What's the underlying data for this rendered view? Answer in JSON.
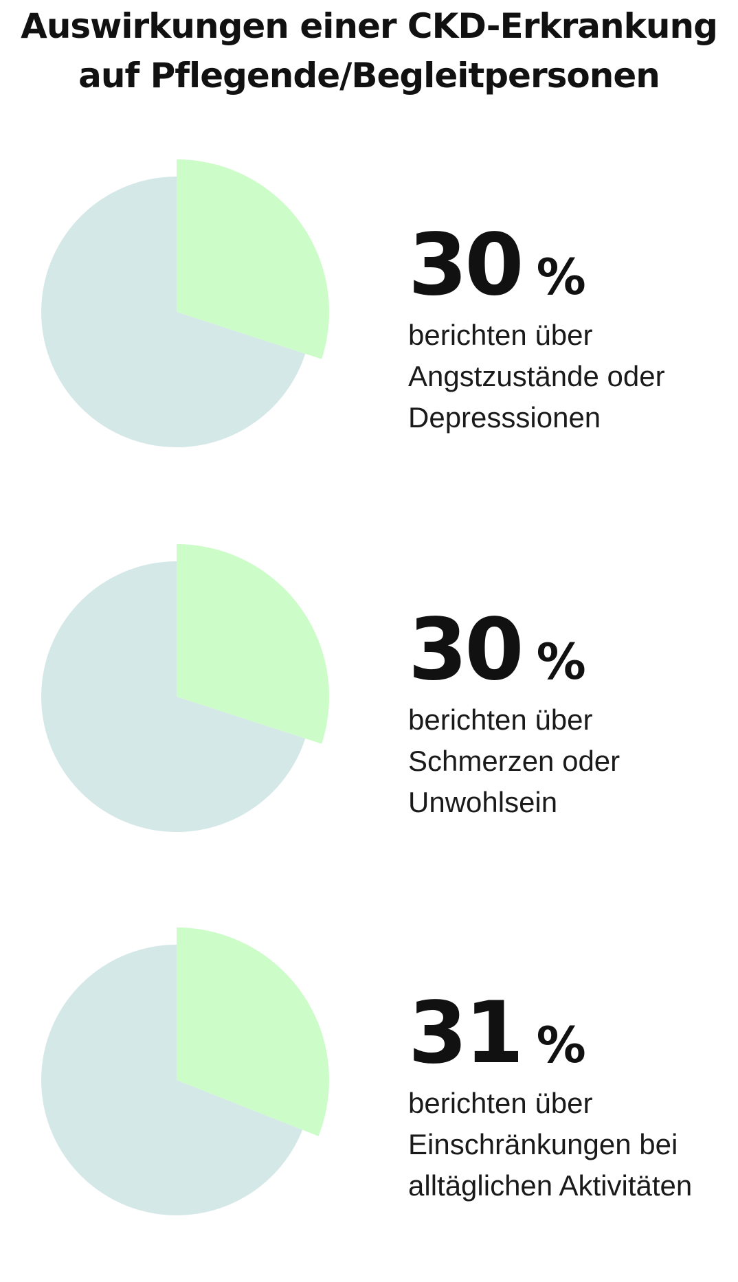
{
  "title": {
    "line1": "Auswirkungen einer CKD-Erkrankung",
    "line2": "auf Pflegende/Begleitpersonen"
  },
  "colors": {
    "highlight": "#ccfcc8",
    "rest": "#d5e8e8",
    "text": "#111111"
  },
  "stats": [
    {
      "value": "30",
      "unit": "%",
      "lines": [
        "berichten über",
        "Angstzustände oder",
        "Depresssionen"
      ]
    },
    {
      "value": "30",
      "unit": "%",
      "lines": [
        "berichten über",
        "Schmerzen oder",
        "Unwohlsein"
      ]
    },
    {
      "value": "31",
      "unit": "%",
      "lines": [
        "berichten über",
        "Einschränkungen bei",
        "alltäglichen Aktivitäten"
      ]
    }
  ],
  "chart_data": [
    {
      "type": "pie",
      "categories": [
        "berichten über Angstzustände oder Depresssionen",
        ""
      ],
      "values": [
        30,
        70
      ]
    },
    {
      "type": "pie",
      "categories": [
        "berichten über Schmerzen oder Unwohlsein",
        ""
      ],
      "values": [
        30,
        70
      ]
    },
    {
      "type": "pie",
      "categories": [
        "berichten über Einschränkungen bei alltäglichen Aktivitäten",
        ""
      ],
      "values": [
        31,
        69
      ]
    }
  ]
}
